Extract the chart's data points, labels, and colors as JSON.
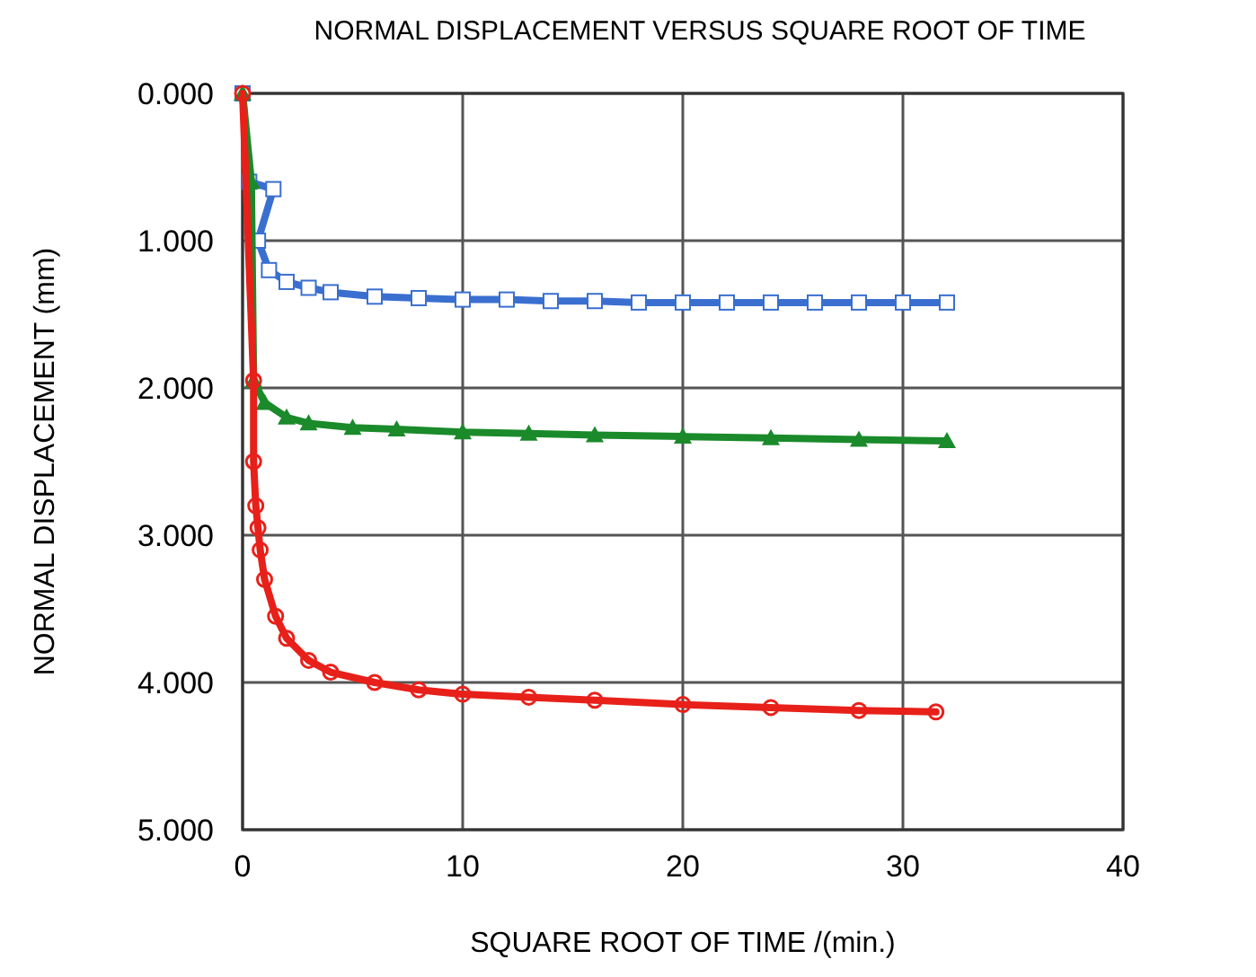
{
  "chart_data": {
    "type": "line",
    "title": "NORMAL DISPLACEMENT VERSUS SQUARE ROOT OF TIME",
    "xlabel": "SQUARE ROOT OF TIME /(min.)",
    "ylabel": "NORMAL DISPLACEMENT (mm)",
    "xlim": [
      0,
      40
    ],
    "xticks": [
      0,
      10,
      20,
      30,
      40
    ],
    "ylim": [
      5,
      0
    ],
    "yticks": [
      {
        "value": 0,
        "label": "0.000"
      },
      {
        "value": 1,
        "label": "1.000"
      },
      {
        "value": 2,
        "label": "2.000"
      },
      {
        "value": 3,
        "label": "3.000"
      },
      {
        "value": 4,
        "label": "4.000"
      },
      {
        "value": 5,
        "label": "5.000"
      }
    ],
    "grid": true,
    "line_style": "solid",
    "series": [
      {
        "color": "#3a6fd0",
        "marker": "square",
        "x": [
          0,
          0.3,
          1.4,
          0.7,
          1.2,
          2,
          3,
          4,
          6,
          8,
          10,
          12,
          14,
          16,
          18,
          20,
          22,
          24,
          26,
          28,
          30,
          32
        ],
        "values": [
          0,
          0.6,
          0.65,
          1.0,
          1.2,
          1.28,
          1.32,
          1.35,
          1.38,
          1.39,
          1.4,
          1.4,
          1.41,
          1.41,
          1.42,
          1.42,
          1.42,
          1.42,
          1.42,
          1.42,
          1.42,
          1.42
        ]
      },
      {
        "color": "#1a8a2a",
        "marker": "triangle",
        "x": [
          0,
          0.4,
          0.5,
          1,
          2,
          3,
          5,
          7,
          10,
          13,
          16,
          20,
          24,
          28,
          32
        ],
        "values": [
          0,
          0.6,
          1.95,
          2.1,
          2.2,
          2.24,
          2.27,
          2.28,
          2.3,
          2.31,
          2.32,
          2.33,
          2.34,
          2.35,
          2.36
        ]
      },
      {
        "color": "#e8201a",
        "marker": "circle",
        "x": [
          0,
          0.5,
          0.5,
          0.6,
          0.7,
          0.8,
          1,
          1.5,
          2,
          3,
          4,
          6,
          8,
          10,
          13,
          16,
          20,
          24,
          28,
          31.5
        ],
        "values": [
          0,
          1.95,
          2.5,
          2.8,
          2.95,
          3.1,
          3.3,
          3.55,
          3.7,
          3.85,
          3.93,
          4.0,
          4.05,
          4.08,
          4.1,
          4.12,
          4.15,
          4.17,
          4.19,
          4.2
        ]
      }
    ]
  }
}
